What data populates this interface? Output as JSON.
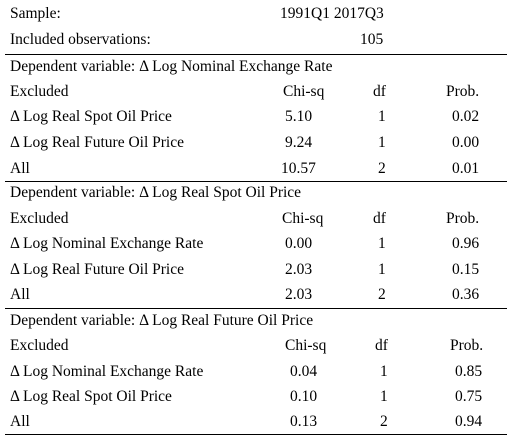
{
  "header": {
    "sample_label": "Sample:",
    "sample_value": "1991Q1 2017Q3",
    "obs_label": "Included observations:",
    "obs_value": "105"
  },
  "blocks": [
    {
      "title": "Dependent variable: Δ Log Nominal Exchange Rate",
      "columns": [
        "Excluded",
        "Chi-sq",
        "df",
        "Prob."
      ],
      "rows": [
        {
          "excluded": "Δ Log Real Spot Oil Price",
          "chisq": "5.10",
          "df": "1",
          "prob": "0.02"
        },
        {
          "excluded": "Δ Log Real Future Oil Price",
          "chisq": "9.24",
          "df": "1",
          "prob": "0.00"
        },
        {
          "excluded": "All",
          "chisq": "10.57",
          "df": "2",
          "prob": "0.01"
        }
      ]
    },
    {
      "title": "Dependent variable: Δ Log Real Spot Oil Price",
      "columns": [
        "Excluded",
        "Chi-sq",
        "df",
        "Prob."
      ],
      "rows": [
        {
          "excluded": "Δ Log Nominal Exchange Rate",
          "chisq": "0.00",
          "df": "1",
          "prob": "0.96"
        },
        {
          "excluded": "Δ Log Real Future Oil Price",
          "chisq": "2.03",
          "df": "1",
          "prob": "0.15"
        },
        {
          "excluded": "All",
          "chisq": "2.03",
          "df": "2",
          "prob": "0.36"
        }
      ]
    },
    {
      "title": "Dependent variable: Δ Log Real Future Oil Price",
      "columns": [
        "Excluded",
        "Chi-sq",
        "df",
        "Prob."
      ],
      "rows": [
        {
          "excluded": "Δ Log Nominal Exchange Rate",
          "chisq": "0.04",
          "df": "1",
          "prob": "0.85"
        },
        {
          "excluded": "Δ Log Real Spot Oil Price",
          "chisq": "0.10",
          "df": "1",
          "prob": "0.75"
        },
        {
          "excluded": "All",
          "chisq": "0.13",
          "df": "2",
          "prob": "0.94"
        }
      ]
    }
  ]
}
